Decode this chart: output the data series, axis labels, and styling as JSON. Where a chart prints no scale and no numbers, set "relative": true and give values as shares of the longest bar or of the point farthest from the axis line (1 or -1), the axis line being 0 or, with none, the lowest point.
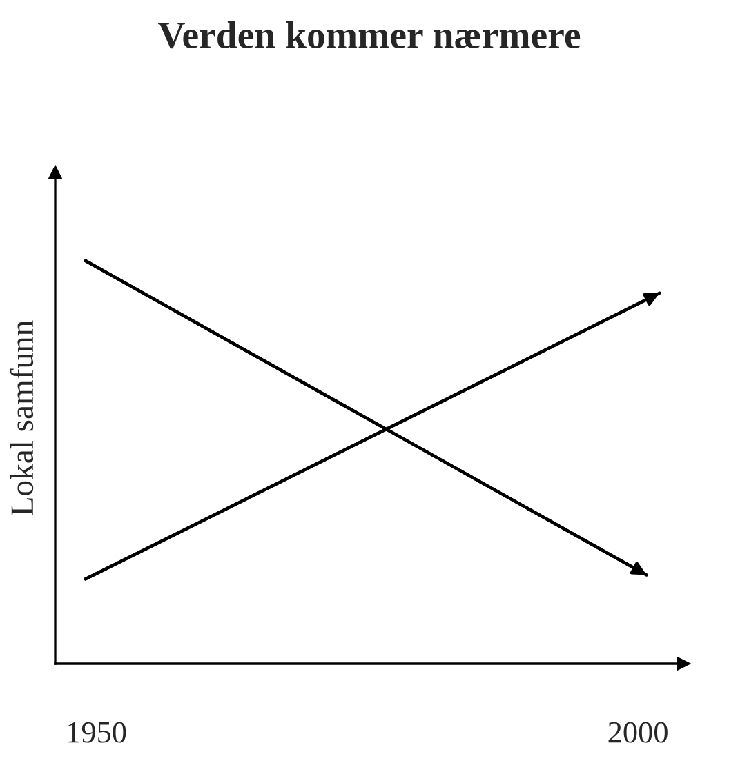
{
  "chart_data": {
    "type": "line",
    "title": "Verden kommer nærmere",
    "ylabel": "Lokal samfunn",
    "relative": true,
    "xlim": [
      1946.2,
      2004.2
    ],
    "xticks": [
      1950,
      2000
    ],
    "grid": false,
    "legend": false,
    "series": [
      {
        "color": "#000000",
        "x": [
          1949,
          2000.8
        ],
        "values": [
          1,
          0.22
        ]
      },
      {
        "color": "#000000",
        "x": [
          1949,
          2002
        ],
        "values": [
          0.21,
          0.92
        ]
      }
    ]
  }
}
